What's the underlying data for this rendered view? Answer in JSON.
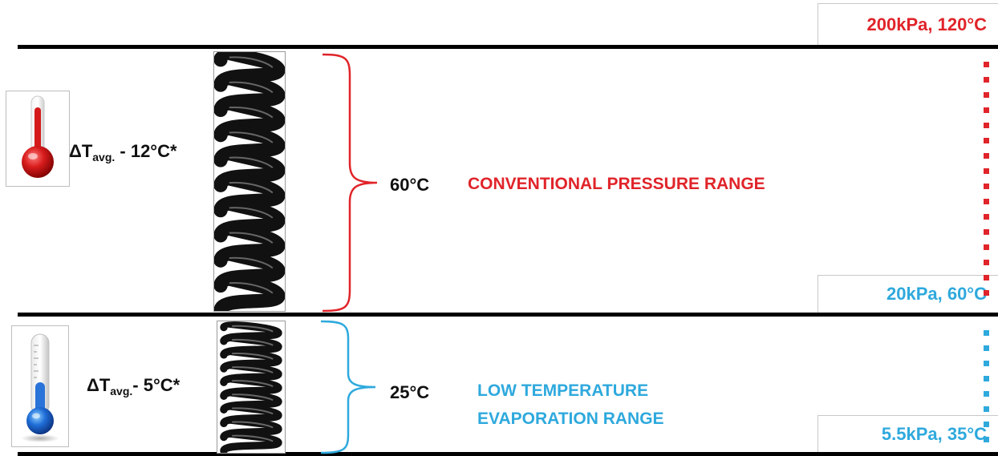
{
  "top_label": "200kPa, 120°C",
  "mid_label": "20kPa, 60°C",
  "bottom_label": "5.5kPa, 35°C",
  "upper": {
    "delta_symbol": "ΔT",
    "delta_sub": "avg.",
    "delta_value": " - 12°C*",
    "temp_diff": "60°C",
    "range_label": "CONVENTIONAL PRESSURE RANGE",
    "thermometer_icon": "thermometer-hot-icon",
    "spring_icon": "coil-spring-icon",
    "color": "#e0242a"
  },
  "lower": {
    "delta_symbol": "ΔT",
    "delta_sub": "avg.",
    "delta_value": "-  5°C*",
    "temp_diff": "25°C",
    "range_label_line1": "LOW TEMPERATURE",
    "range_label_line2": "EVAPORATION RANGE",
    "thermometer_icon": "thermometer-cold-icon",
    "spring_icon": "coil-spring-icon",
    "color": "#2ea9dd"
  }
}
